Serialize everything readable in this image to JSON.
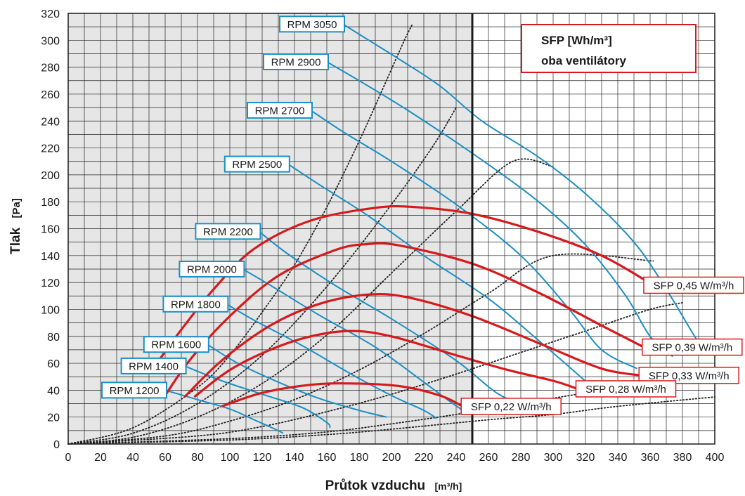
{
  "chart_data": {
    "type": "line",
    "xlabel": "Průtok vzduchu",
    "xunit": "[m³/h]",
    "ylabel": "Tlak",
    "yunit": "[Pa]",
    "xlim": [
      0,
      400
    ],
    "ylim": [
      0,
      320
    ],
    "xticks": [
      "0",
      "20",
      "40",
      "60",
      "80",
      "100",
      "120",
      "140",
      "160",
      "180",
      "200",
      "220",
      "240",
      "260",
      "280",
      "300",
      "320",
      "340",
      "360",
      "380",
      "400"
    ],
    "yticks": [
      "0",
      "20",
      "40",
      "60",
      "80",
      "100",
      "120",
      "140",
      "160",
      "180",
      "200",
      "220",
      "240",
      "260",
      "280",
      "300",
      "320"
    ],
    "grid": true,
    "shaded_region_x": [
      0,
      250
    ],
    "vertical_line_x": 250,
    "legend": {
      "line1": "SFP [Wh/m³]",
      "line2": "oba ventilátory",
      "colors": {
        "border": "#d7191c",
        "text": "#1a1a1a"
      }
    },
    "colors": {
      "rpm": "#1b8fc4",
      "sfp": "#d7191c",
      "system": "#222222",
      "shade": "#e6e6e6",
      "grid": "#222222"
    },
    "rpm_curves": [
      {
        "label": "RPM 3050",
        "points": [
          [
            170,
            312
          ],
          [
            186,
            300
          ],
          [
            206,
            285
          ],
          [
            230,
            266
          ],
          [
            256,
            240
          ],
          [
            290,
            214
          ],
          [
            320,
            186
          ],
          [
            350,
            150
          ],
          [
            370,
            115
          ],
          [
            386,
            83
          ],
          [
            394,
            68
          ]
        ]
      },
      {
        "label": "RPM 2900",
        "points": [
          [
            160,
            284
          ],
          [
            180,
            270
          ],
          [
            210,
            248
          ],
          [
            250,
            216
          ],
          [
            290,
            181
          ],
          [
            320,
            148
          ],
          [
            345,
            110
          ],
          [
            360,
            80
          ],
          [
            374,
            65
          ]
        ]
      },
      {
        "label": "RPM 2700",
        "points": [
          [
            150,
            248
          ],
          [
            170,
            232
          ],
          [
            200,
            210
          ],
          [
            240,
            178
          ],
          [
            280,
            140
          ],
          [
            310,
            100
          ],
          [
            330,
            70
          ],
          [
            352,
            56
          ]
        ]
      },
      {
        "label": "RPM 2500",
        "points": [
          [
            136,
            208
          ],
          [
            155,
            193
          ],
          [
            185,
            170
          ],
          [
            220,
            140
          ],
          [
            260,
            108
          ],
          [
            290,
            78
          ],
          [
            315,
            52
          ],
          [
            326,
            40
          ]
        ]
      },
      {
        "label": "RPM 2200",
        "points": [
          [
            118,
            158
          ],
          [
            135,
            142
          ],
          [
            165,
            118
          ],
          [
            200,
            93
          ],
          [
            240,
            62
          ],
          [
            265,
            38
          ],
          [
            280,
            30
          ]
        ]
      },
      {
        "label": "RPM 2000",
        "points": [
          [
            108,
            130
          ],
          [
            125,
            118
          ],
          [
            155,
            96
          ],
          [
            190,
            72
          ],
          [
            220,
            46
          ],
          [
            238,
            30
          ],
          [
            247,
            23
          ]
        ]
      },
      {
        "label": "RPM 1800",
        "points": [
          [
            98,
            104
          ],
          [
            115,
            92
          ],
          [
            145,
            73
          ],
          [
            175,
            52
          ],
          [
            200,
            36
          ],
          [
            220,
            25
          ],
          [
            228,
            19
          ]
        ]
      },
      {
        "label": "RPM 1600",
        "points": [
          [
            86,
            74
          ],
          [
            105,
            60
          ],
          [
            130,
            46
          ],
          [
            155,
            34
          ],
          [
            180,
            25
          ],
          [
            197,
            20
          ]
        ]
      },
      {
        "label": "RPM 1400",
        "points": [
          [
            72,
            58
          ],
          [
            95,
            47
          ],
          [
            120,
            37
          ],
          [
            145,
            27
          ],
          [
            160,
            16
          ],
          [
            162,
            12
          ]
        ]
      },
      {
        "label": "RPM 1200",
        "points": [
          [
            60,
            40
          ],
          [
            80,
            33
          ],
          [
            100,
            26
          ],
          [
            115,
            18
          ],
          [
            128,
            11
          ],
          [
            133,
            8
          ]
        ]
      }
    ],
    "sfp_curves": [
      {
        "label": "SFP 0,45 W/m³/h",
        "points": [
          [
            56,
            62
          ],
          [
            70,
            85
          ],
          [
            90,
            115
          ],
          [
            115,
            145
          ],
          [
            150,
            166
          ],
          [
            190,
            175.5
          ],
          [
            215,
            176
          ],
          [
            250,
            171
          ],
          [
            290,
            158
          ],
          [
            330,
            140
          ],
          [
            362,
            118
          ]
        ]
      },
      {
        "label": "SFP 0,39 W/m³/h",
        "points": [
          [
            60,
            36
          ],
          [
            75,
            62
          ],
          [
            100,
            95
          ],
          [
            130,
            125
          ],
          [
            165,
            144
          ],
          [
            185,
            148.5
          ],
          [
            205,
            147.5
          ],
          [
            250,
            134
          ],
          [
            290,
            113
          ],
          [
            330,
            88
          ],
          [
            356,
            72
          ]
        ]
      },
      {
        "label": "SFP 0,33 W/m³/h",
        "points": [
          [
            72,
            35
          ],
          [
            95,
            62
          ],
          [
            125,
            88
          ],
          [
            155,
            104
          ],
          [
            185,
            111
          ],
          [
            210,
            109
          ],
          [
            250,
            95
          ],
          [
            295,
            73
          ],
          [
            330,
            56
          ],
          [
            354,
            51
          ]
        ]
      },
      {
        "label": "SFP 0,28 W/m³/h",
        "points": [
          [
            78,
            35
          ],
          [
            100,
            55
          ],
          [
            125,
            70
          ],
          [
            150,
            80
          ],
          [
            175,
            84
          ],
          [
            200,
            80
          ],
          [
            240,
            66
          ],
          [
            272,
            55
          ],
          [
            300,
            47
          ],
          [
            315,
            41
          ]
        ]
      },
      {
        "label": "SFP 0,22 W/m³/h",
        "points": [
          [
            95,
            28
          ],
          [
            120,
            38
          ],
          [
            150,
            44
          ],
          [
            175,
            45
          ],
          [
            205,
            43
          ],
          [
            230,
            36
          ],
          [
            244,
            28
          ]
        ]
      }
    ],
    "system_curves": [
      {
        "points": [
          [
            0,
            0
          ],
          [
            40,
            12
          ],
          [
            80,
            42
          ],
          [
            100,
            66
          ],
          [
            120,
            98
          ],
          [
            140,
            133
          ],
          [
            160,
            176
          ],
          [
            180,
            225
          ],
          [
            195,
            265
          ],
          [
            208,
            300
          ],
          [
            213,
            312
          ]
        ]
      },
      {
        "points": [
          [
            0,
            0
          ],
          [
            40,
            8
          ],
          [
            80,
            30
          ],
          [
            120,
            66
          ],
          [
            160,
            117
          ],
          [
            200,
            178
          ],
          [
            226,
            222
          ],
          [
            240,
            250
          ]
        ]
      },
      {
        "points": [
          [
            0,
            0
          ],
          [
            40,
            5
          ],
          [
            80,
            20
          ],
          [
            120,
            45
          ],
          [
            160,
            81
          ],
          [
            200,
            127
          ],
          [
            240,
            173
          ],
          [
            275,
            210
          ],
          [
            300,
            206
          ]
        ]
      },
      {
        "points": [
          [
            0,
            0
          ],
          [
            60,
            6
          ],
          [
            100,
            17
          ],
          [
            140,
            33
          ],
          [
            180,
            55
          ],
          [
            220,
            82
          ],
          [
            260,
            112
          ],
          [
            300,
            140
          ],
          [
            362,
            136
          ]
        ]
      },
      {
        "points": [
          [
            0,
            0
          ],
          [
            80,
            6
          ],
          [
            120,
            13
          ],
          [
            160,
            24
          ],
          [
            200,
            37
          ],
          [
            240,
            52
          ],
          [
            280,
            68
          ],
          [
            320,
            84
          ],
          [
            360,
            100
          ],
          [
            380,
            105
          ]
        ]
      },
      {
        "points": [
          [
            0,
            0
          ],
          [
            100,
            4
          ],
          [
            160,
            9
          ],
          [
            200,
            15
          ],
          [
            240,
            22
          ],
          [
            280,
            30
          ],
          [
            320,
            38
          ],
          [
            360,
            46
          ],
          [
            398,
            54
          ]
        ]
      },
      {
        "points": [
          [
            0,
            0
          ],
          [
            100,
            3
          ],
          [
            160,
            7
          ],
          [
            200,
            11
          ],
          [
            260,
            18
          ],
          [
            300,
            22
          ],
          [
            340,
            28
          ],
          [
            400,
            35
          ]
        ]
      }
    ],
    "rpm_label_pos": [
      [
        170,
        312
      ],
      [
        160,
        284
      ],
      [
        150,
        248
      ],
      [
        136,
        208
      ],
      [
        118,
        158
      ],
      [
        108,
        130
      ],
      [
        98,
        104
      ],
      [
        86,
        74
      ],
      [
        72,
        58
      ],
      [
        60,
        40
      ]
    ],
    "sfp_label_pos": [
      [
        362,
        118
      ],
      [
        356,
        72
      ],
      [
        354,
        51
      ],
      [
        315,
        41
      ],
      [
        244,
        28
      ]
    ]
  }
}
